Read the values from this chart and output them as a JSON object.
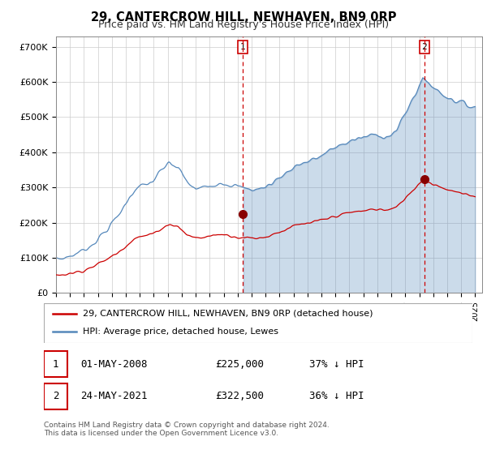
{
  "title": "29, CANTERCROW HILL, NEWHAVEN, BN9 0RP",
  "subtitle": "Price paid vs. HM Land Registry's House Price Index (HPI)",
  "ylabel_ticks": [
    "£0",
    "£100K",
    "£200K",
    "£300K",
    "£400K",
    "£500K",
    "£600K",
    "£700K"
  ],
  "ytick_values": [
    0,
    100000,
    200000,
    300000,
    400000,
    500000,
    600000,
    700000
  ],
  "ylim": [
    0,
    730000
  ],
  "xlim_start": 1995.0,
  "xlim_end": 2025.5,
  "legend_label_red": "29, CANTERCROW HILL, NEWHAVEN, BN9 0RP (detached house)",
  "legend_label_blue": "HPI: Average price, detached house, Lewes",
  "purchase1_date": "01-MAY-2008",
  "purchase1_price": "£225,000",
  "purchase1_pct": "37% ↓ HPI",
  "purchase2_date": "24-MAY-2021",
  "purchase2_price": "£322,500",
  "purchase2_pct": "36% ↓ HPI",
  "footnote": "Contains HM Land Registry data © Crown copyright and database right 2024.\nThis data is licensed under the Open Government Licence v3.0.",
  "color_red": "#cc0000",
  "color_blue": "#5588bb",
  "color_fill": "#ddeeff",
  "vline1_x": 2008.37,
  "vline2_x": 2021.37,
  "dot1_x": 2008.37,
  "dot1_y": 225000,
  "dot2_x": 2021.37,
  "dot2_y": 322500
}
